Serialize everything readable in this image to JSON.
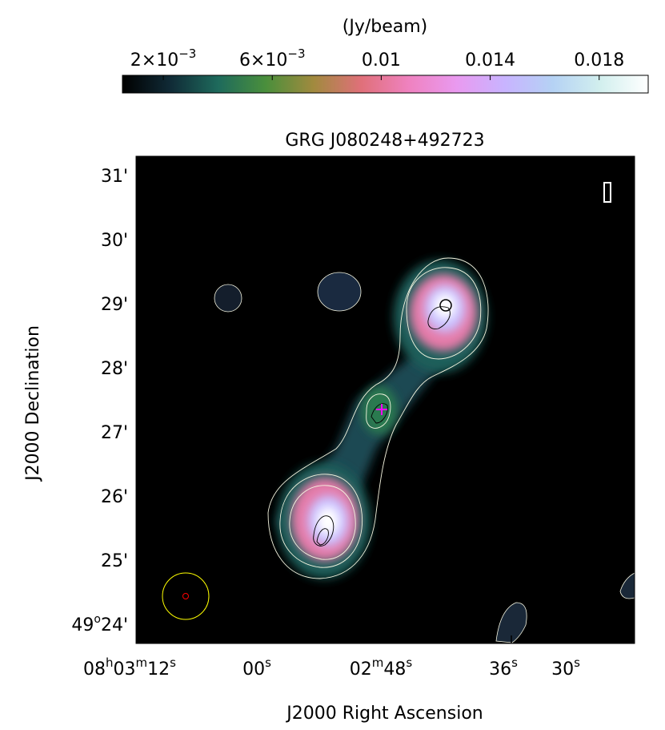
{
  "chart_data": {
    "type": "heatmap",
    "title": "GRG J080248+492723",
    "xlabel": "J2000 Right Ascension",
    "ylabel": "J2000 Declination",
    "colorbar": {
      "label": "(Jy/beam)",
      "ticks": [
        {
          "value": 0.002,
          "base": "2×10",
          "exp": "−3"
        },
        {
          "value": 0.006,
          "base": "6×10",
          "exp": "−3"
        },
        {
          "value": 0.01,
          "text": "0.01"
        },
        {
          "value": 0.014,
          "text": "0.014"
        },
        {
          "value": 0.018,
          "text": "0.018"
        }
      ],
      "range": [
        0.0005,
        0.0198
      ],
      "colormap": [
        "#000000",
        "#102a36",
        "#1e6a5c",
        "#4a8f3c",
        "#a18a3e",
        "#e0707a",
        "#ef82c0",
        "#e99af0",
        "#c8b4ff",
        "#b5d2f4",
        "#d2efee",
        "#ffffff"
      ]
    },
    "x_axis": {
      "ticks": [
        {
          "pos": 0,
          "hms": [
            {
              "t": "08",
              "s": "h"
            },
            {
              "t": "03",
              "s": "m"
            },
            {
              "t": "12",
              "s": "s"
            }
          ]
        },
        {
          "pos": 1,
          "hms": [
            {
              "t": "00",
              "s": "s"
            }
          ]
        },
        {
          "pos": 2,
          "hms": [
            {
              "t": "02",
              "s": "m"
            },
            {
              "t": "48",
              "s": "s"
            }
          ]
        },
        {
          "pos": 3,
          "hms": [
            {
              "t": "36",
              "s": "s"
            }
          ]
        },
        {
          "pos": 4,
          "hms": [
            {
              "t": "30",
              "s": "s"
            }
          ]
        }
      ]
    },
    "y_axis": {
      "ticks": [
        {
          "arcmin": 31,
          "text": "31'"
        },
        {
          "arcmin": 30,
          "text": "30'"
        },
        {
          "arcmin": 29,
          "text": "29'"
        },
        {
          "arcmin": 28,
          "text": "28'"
        },
        {
          "arcmin": 27,
          "text": "27'"
        },
        {
          "arcmin": 26,
          "text": "26'"
        },
        {
          "arcmin": 25,
          "text": "25'"
        },
        {
          "arcmin": 24,
          "deg": "49",
          "text": "24'"
        }
      ],
      "range_arcmin": [
        23.7,
        31.3
      ]
    },
    "sources": [
      {
        "name": "north-lobe",
        "ra_s": 42.0,
        "dec_arcmin": 28.9,
        "peak": 0.0198
      },
      {
        "name": "south-lobe",
        "ra_s": 53.0,
        "dec_arcmin": 25.6,
        "peak": 0.0198
      },
      {
        "name": "core",
        "ra_s": 48.3,
        "dec_arcmin": 27.35,
        "peak": 0.0045
      },
      {
        "name": "blob-upper-left",
        "ra_s": 55.3,
        "dec_arcmin": 29.45,
        "peak": 0.0012
      },
      {
        "name": "blob-far-left",
        "ra_s": 64.5,
        "dec_arcmin": 29.15,
        "peak": 0.0008
      },
      {
        "name": "blob-bottom",
        "ra_s": 37.6,
        "dec_arcmin": 23.9,
        "peak": 0.0009
      },
      {
        "name": "blob-right-edge",
        "ra_s": 25.5,
        "dec_arcmin": 24.6,
        "peak": 0.0008
      }
    ],
    "beam": {
      "ra_s": 69.5,
      "dec_arcmin": 24.4,
      "radius_arcmin": 0.4
    },
    "host_marker": {
      "ra_s": 48.1,
      "dec_arcmin": 27.4
    },
    "grid": false,
    "contour_colors": {
      "radio": "#f5f5e0",
      "optical": "#000000",
      "beam": "#ffff00",
      "host": "#ff00ff",
      "beam_center": "#ff0000"
    }
  }
}
